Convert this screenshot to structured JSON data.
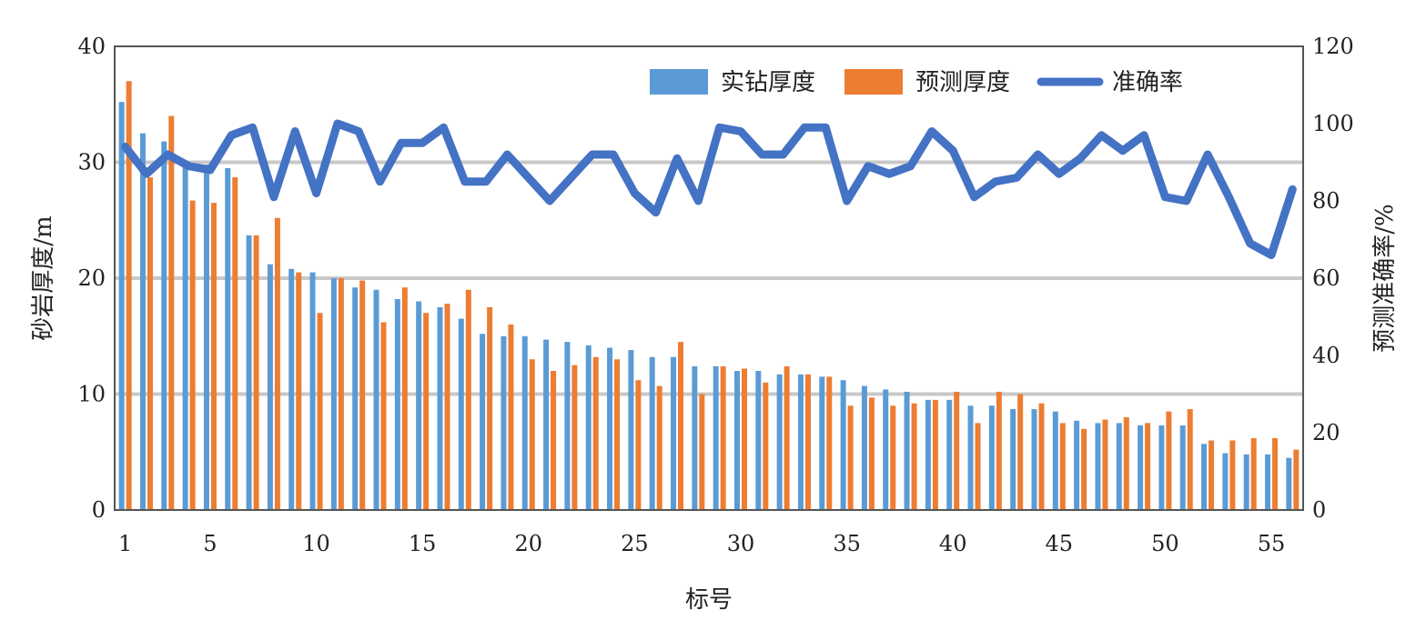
{
  "chart_data": {
    "type": "bar",
    "title": "",
    "xlabel": "标号",
    "ylabel": "砂岩厚度/m",
    "y2label": "预测准确率/%",
    "ylim": [
      0,
      40
    ],
    "y2lim": [
      0,
      120
    ],
    "yticks": [
      "0",
      "10",
      "20",
      "30",
      "40"
    ],
    "y2ticks": [
      "0",
      "20",
      "40",
      "60",
      "80",
      "100",
      "120"
    ],
    "xticks": [
      "1",
      "5",
      "10",
      "15",
      "20",
      "25",
      "30",
      "35",
      "40",
      "45",
      "50",
      "55"
    ],
    "xtick_values": [
      1,
      5,
      10,
      15,
      20,
      25,
      30,
      35,
      40,
      45,
      50,
      55
    ],
    "grid": true,
    "legend_position": "top-right",
    "categories": [
      1,
      2,
      3,
      4,
      5,
      6,
      7,
      8,
      9,
      10,
      11,
      12,
      13,
      14,
      15,
      16,
      17,
      18,
      19,
      20,
      21,
      22,
      23,
      24,
      25,
      26,
      27,
      28,
      29,
      30,
      31,
      32,
      33,
      34,
      35,
      36,
      37,
      38,
      39,
      40,
      41,
      42,
      43,
      44,
      45,
      46,
      47,
      48,
      49,
      50,
      51,
      52,
      53,
      54,
      55,
      56
    ],
    "series": [
      {
        "name": "实钻厚度",
        "type": "bar",
        "axis": "left",
        "color": "#5b9bd5",
        "values": [
          35.2,
          32.5,
          31.8,
          29.8,
          29.8,
          29.5,
          23.7,
          21.2,
          20.8,
          20.5,
          20.0,
          19.2,
          19.0,
          18.2,
          18.0,
          17.5,
          16.5,
          15.2,
          15.0,
          15.0,
          14.7,
          14.5,
          14.2,
          14.0,
          13.8,
          13.2,
          13.2,
          12.4,
          12.4,
          12.0,
          12.0,
          11.7,
          11.7,
          11.5,
          11.2,
          10.7,
          10.4,
          10.2,
          9.5,
          9.5,
          9.0,
          9.0,
          8.7,
          8.7,
          8.5,
          7.7,
          7.5,
          7.5,
          7.3,
          7.3,
          7.3,
          5.7,
          4.9,
          4.8,
          4.8,
          4.5
        ]
      },
      {
        "name": "预测厚度",
        "type": "bar",
        "axis": "left",
        "color": "#ed7d31",
        "values": [
          37.0,
          28.7,
          34.0,
          26.7,
          26.5,
          28.7,
          23.7,
          25.2,
          20.5,
          17.0,
          20.0,
          19.8,
          16.2,
          19.2,
          17.0,
          17.8,
          19.0,
          17.5,
          16.0,
          13.0,
          12.0,
          12.5,
          13.2,
          13.0,
          11.2,
          10.7,
          14.5,
          10.0,
          12.4,
          12.2,
          11.0,
          12.4,
          11.7,
          11.5,
          9.0,
          9.7,
          9.0,
          9.2,
          9.5,
          10.2,
          7.5,
          10.2,
          10.0,
          9.2,
          7.5,
          7.0,
          7.8,
          8.0,
          7.5,
          8.5,
          8.7,
          6.0,
          6.0,
          6.2,
          6.2,
          5.2
        ]
      },
      {
        "name": "准确率",
        "type": "line",
        "axis": "right",
        "color": "#4472c4",
        "values": [
          94,
          87,
          92,
          89,
          88,
          97,
          99,
          81,
          98,
          82,
          100,
          98,
          85,
          95,
          95,
          99,
          85,
          85,
          92,
          86,
          80,
          86,
          92,
          92,
          82,
          77,
          91,
          80,
          99,
          98,
          92,
          92,
          99,
          99,
          80,
          89,
          87,
          89,
          98,
          93,
          81,
          85,
          86,
          92,
          87,
          91,
          97,
          93,
          97,
          81,
          80,
          92,
          81,
          69,
          66,
          83
        ]
      }
    ]
  }
}
